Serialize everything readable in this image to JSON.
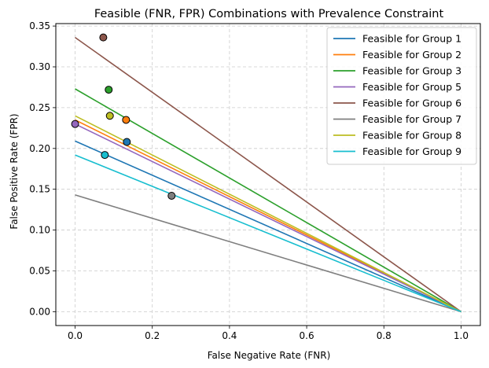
{
  "chart_data": {
    "type": "line",
    "title": "Feasible (FNR, FPR) Combinations with Prevalence Constraint",
    "xlabel": "False Negative Rate (FNR)",
    "ylabel": "False Positive Rate (FPR)",
    "xlim": [
      -0.05,
      1.05
    ],
    "ylim": [
      -0.017,
      0.353
    ],
    "xticks": [
      0.0,
      0.2,
      0.4,
      0.6,
      0.8,
      1.0
    ],
    "xtick_labels": [
      "0.0",
      "0.2",
      "0.4",
      "0.6",
      "0.8",
      "1.0"
    ],
    "yticks": [
      0.0,
      0.05,
      0.1,
      0.15,
      0.2,
      0.25,
      0.3,
      0.35
    ],
    "ytick_labels": [
      "0.00",
      "0.05",
      "0.10",
      "0.15",
      "0.20",
      "0.25",
      "0.30",
      "0.35"
    ],
    "grid": true,
    "legend_position": "top-right",
    "series": [
      {
        "name": "Feasible for Group 1",
        "color": "#1f77b4",
        "line": {
          "x": [
            0,
            1
          ],
          "y": [
            0.209,
            0
          ]
        },
        "point": {
          "x": 0.134,
          "y": 0.208
        }
      },
      {
        "name": "Feasible for Group 2",
        "color": "#ff7f0e",
        "line": {
          "x": [
            0,
            1
          ],
          "y": [
            0.235,
            0
          ]
        },
        "point": {
          "x": 0.132,
          "y": 0.235
        }
      },
      {
        "name": "Feasible for Group 3",
        "color": "#2ca02c",
        "line": {
          "x": [
            0,
            1
          ],
          "y": [
            0.273,
            0
          ]
        },
        "point": {
          "x": 0.087,
          "y": 0.272
        }
      },
      {
        "name": "Feasible for Group 5",
        "color": "#9467bd",
        "line": {
          "x": [
            0,
            1
          ],
          "y": [
            0.23,
            0
          ]
        },
        "point": {
          "x": 0.0,
          "y": 0.23
        }
      },
      {
        "name": "Feasible for Group 6",
        "color": "#8c564b",
        "line": {
          "x": [
            0,
            1
          ],
          "y": [
            0.336,
            0
          ]
        },
        "point": {
          "x": 0.073,
          "y": 0.336
        }
      },
      {
        "name": "Feasible for Group 7",
        "color": "#7f7f7f",
        "line": {
          "x": [
            0,
            1
          ],
          "y": [
            0.143,
            0
          ]
        },
        "point": {
          "x": 0.25,
          "y": 0.142
        }
      },
      {
        "name": "Feasible for Group 8",
        "color": "#bcbd22",
        "line": {
          "x": [
            0,
            1
          ],
          "y": [
            0.24,
            0
          ]
        },
        "point": {
          "x": 0.09,
          "y": 0.24
        }
      },
      {
        "name": "Feasible for Group 9",
        "color": "#17becf",
        "line": {
          "x": [
            0,
            1
          ],
          "y": [
            0.192,
            0
          ]
        },
        "point": {
          "x": 0.077,
          "y": 0.192
        }
      }
    ]
  }
}
